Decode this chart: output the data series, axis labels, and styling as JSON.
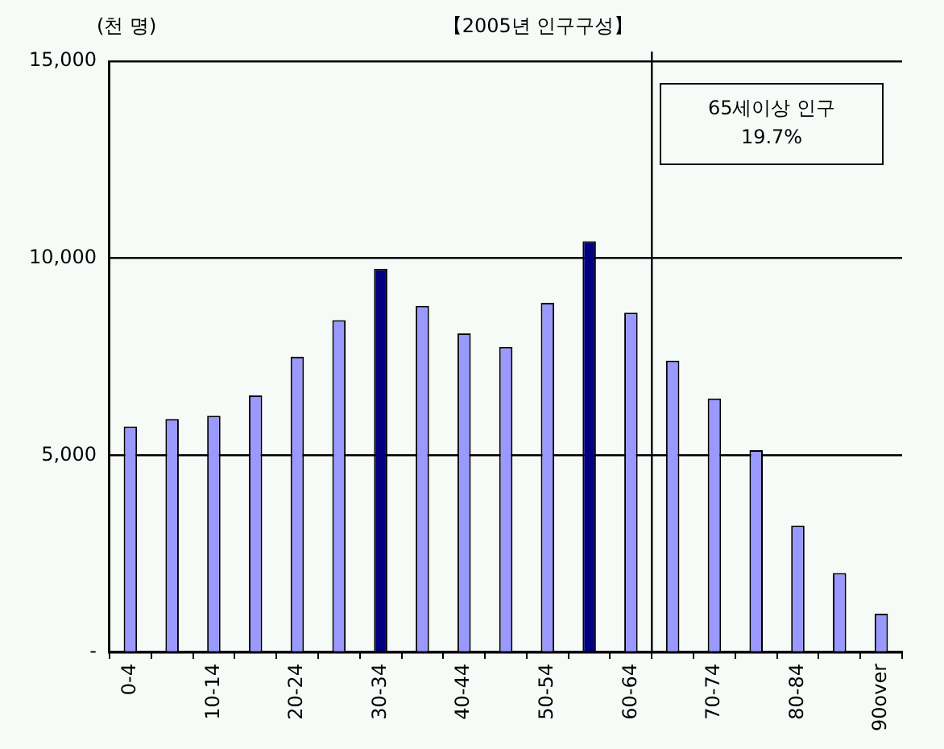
{
  "chart_data": {
    "type": "bar",
    "title": "【2005년 인구구성】",
    "ylabel": "(천 명)",
    "categories": [
      "0-4",
      null,
      "10-14",
      null,
      "20-24",
      null,
      "30-34",
      null,
      "40-44",
      null,
      "50-54",
      null,
      "60-64",
      null,
      "70-74",
      null,
      "80-84",
      null,
      "90over"
    ],
    "values": [
      5730,
      5920,
      6000,
      6520,
      7500,
      8430,
      9730,
      8790,
      8090,
      7750,
      8870,
      10430,
      8620,
      7400,
      6440,
      5130,
      3220,
      2010,
      980
    ],
    "colors": [
      "#9999ff",
      "#9999ff",
      "#9999ff",
      "#9999ff",
      "#9999ff",
      "#9999ff",
      "#000080",
      "#9999ff",
      "#9999ff",
      "#9999ff",
      "#9999ff",
      "#000080",
      "#9999ff",
      "#9999ff",
      "#9999ff",
      "#9999ff",
      "#9999ff",
      "#9999ff",
      "#9999ff"
    ],
    "ylim": [
      0,
      15000
    ],
    "yticks": [
      {
        "value": 0,
        "label": "-"
      },
      {
        "value": 5000,
        "label": "5,000"
      },
      {
        "value": 10000,
        "label": "10,000"
      },
      {
        "value": 15000,
        "label": "15,000"
      }
    ],
    "annotations": [
      "65세이상 인구\n19.7%"
    ],
    "grid": "y",
    "legend": false
  }
}
